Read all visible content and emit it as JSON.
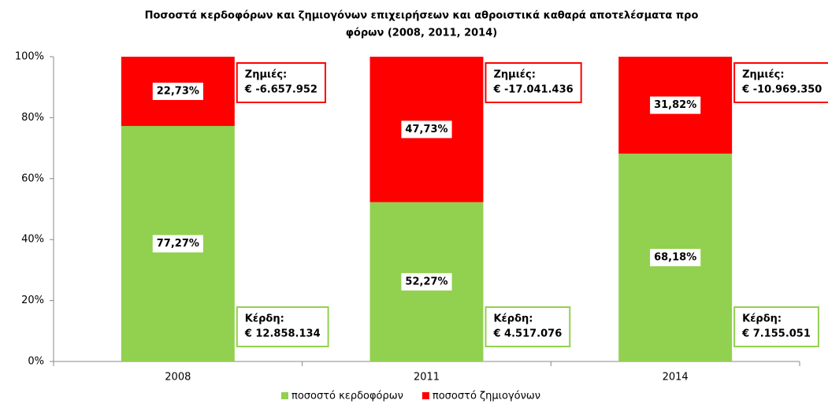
{
  "chart_data": {
    "type": "stacked_bar",
    "title": [
      "Ποσοστά κερδοφόρων και ζημιογόνων επιχειρήσεων και αθροιστικά καθαρά αποτελέσματα προ",
      "φόρων (2008, 2011, 2014)"
    ],
    "categories": [
      "2008",
      "2011",
      "2014"
    ],
    "series": [
      {
        "name": "ποσοστό κερδοφόρων",
        "color": "#92d050",
        "values": [
          77.27,
          52.27,
          68.18
        ],
        "value_labels": [
          "77,27%",
          "52,27%",
          "68,18%"
        ]
      },
      {
        "name": "ποσοστό ζημιογόνων",
        "color": "#ff0000",
        "values": [
          22.73,
          47.73,
          31.82
        ],
        "value_labels": [
          "22,73%",
          "47,73%",
          "31,82%"
        ]
      }
    ],
    "annotations": [
      {
        "losses_label": "Ζημιές:",
        "losses": "€ -6.657.952",
        "profits_label": "Κέρδη:",
        "profits": "€ 12.858.134"
      },
      {
        "losses_label": "Ζημιές:",
        "losses": "€ -17.041.436",
        "profits_label": "Κέρδη:",
        "profits": "€ 4.517.076"
      },
      {
        "losses_label": "Ζημιές:",
        "losses": "€ -10.969.350",
        "profits_label": "Κέρδη:",
        "profits": "€ 7.155.051"
      }
    ],
    "ylim": [
      0,
      100
    ],
    "yticks": [
      {
        "value": 0,
        "label": "0%"
      },
      {
        "value": 20,
        "label": "20%"
      },
      {
        "value": 40,
        "label": "40%"
      },
      {
        "value": 60,
        "label": "60%"
      },
      {
        "value": 80,
        "label": "80%"
      },
      {
        "value": 100,
        "label": "100%"
      }
    ],
    "grid": false,
    "legend": "bottom"
  }
}
